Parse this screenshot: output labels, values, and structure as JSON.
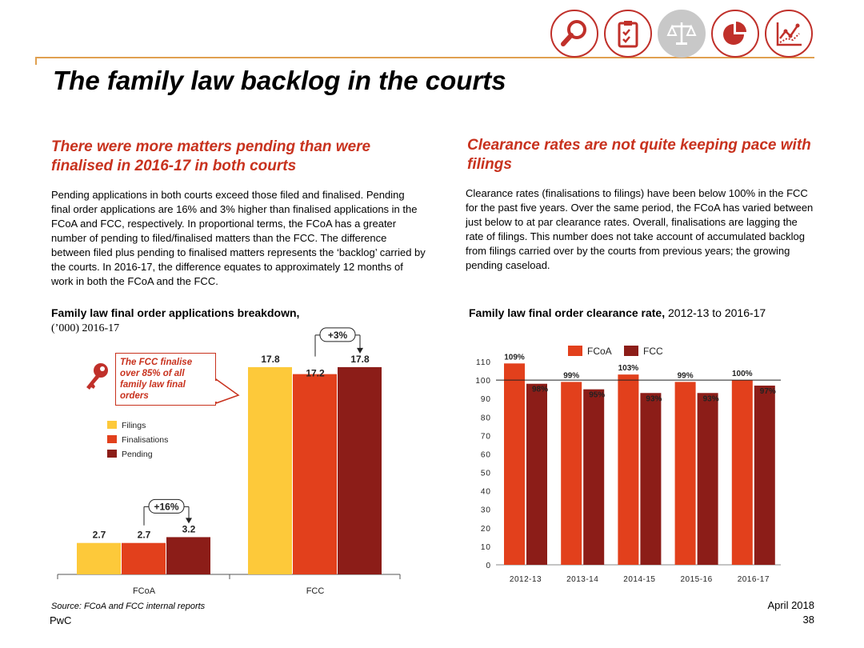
{
  "header": {
    "title": "The family law backlog in the courts",
    "icons": [
      "magnifier-icon",
      "clipboard-checklist-icon",
      "scales-icon",
      "pie-chart-icon",
      "line-chart-icon"
    ]
  },
  "left": {
    "heading": "There were more matters pending than were finalised in 2016-17 in both courts",
    "body": "Pending applications in both courts exceed those filed and finalised. Pending final order applications are 16% and 3% higher than finalised applications in the FCoA and FCC, respectively. In proportional terms, the FCoA has a greater number of pending to filed/finalised matters than the FCC. The difference between filed plus pending to finalised matters represents the ‘backlog’ carried by the courts. In 2016-17, the difference equates to approximately 12 months of work in both the FCoA and the FCC.",
    "callout": "The FCC finalise over 85% of all family law final orders"
  },
  "right": {
    "heading": "Clearance rates are not quite keeping pace with filings",
    "body": "Clearance rates (finalisations to filings) have been below 100% in the FCC for the past five years. Over the same period, the FCoA has varied between just below to at par clearance rates. Overall, finalisations are lagging the rate of filings. This number does not take account of accumulated backlog from filings carried over by the courts from previous years; the growing pending caseload."
  },
  "footer": {
    "source": "Source: FCoA and FCC internal reports",
    "brand": "PwC",
    "date": "April 2018",
    "page": "38"
  },
  "chart_data": [
    {
      "type": "bar",
      "title": "Family law final order applications breakdown,",
      "subtitle": "(’000) 2016-17",
      "categories": [
        "FCoA",
        "FCC"
      ],
      "series": [
        {
          "name": "Filings",
          "values": [
            2.7,
            17.8
          ],
          "color": "#fdc93a"
        },
        {
          "name": "Finalisations",
          "values": [
            2.7,
            17.2
          ],
          "color": "#e2401c"
        },
        {
          "name": "Pending",
          "values": [
            3.2,
            17.8
          ],
          "color": "#8c1d18"
        }
      ],
      "annotations": [
        "+16%",
        "+3%"
      ],
      "ylim": [
        0,
        18
      ]
    },
    {
      "type": "bar",
      "title": "Family law final order clearance rate,",
      "subtitle": "2012-13 to 2016-17",
      "categories": [
        "2012-13",
        "2013-14",
        "2014-15",
        "2015-16",
        "2016-17"
      ],
      "series": [
        {
          "name": "FCoA",
          "values": [
            109,
            99,
            103,
            99,
            100
          ],
          "labels": [
            "109%",
            "99%",
            "103%",
            "99%",
            "100%"
          ],
          "color": "#e2401c"
        },
        {
          "name": "FCC",
          "values": [
            98,
            95,
            93,
            93,
            97
          ],
          "labels": [
            "98%",
            "95%",
            "93%",
            "93%",
            "97%"
          ],
          "color": "#8c1d18"
        }
      ],
      "yticks": [
        "0",
        "10",
        "20",
        "30",
        "40",
        "50",
        "60",
        "70",
        "80",
        "90",
        "100",
        "110"
      ],
      "ylim": [
        0,
        110
      ],
      "reference_line": 100
    }
  ]
}
